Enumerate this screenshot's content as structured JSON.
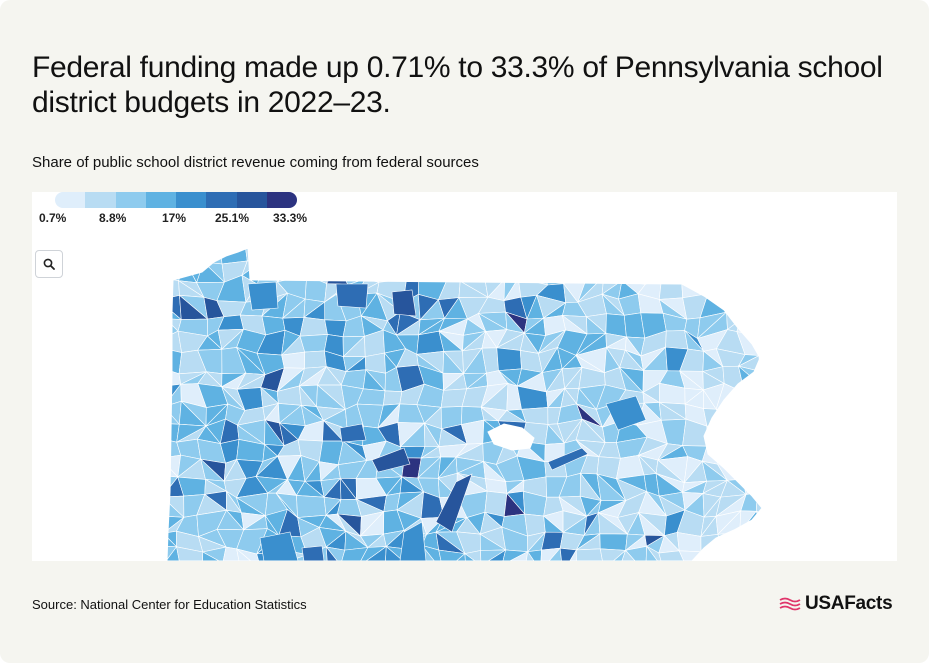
{
  "title": "Federal funding made up 0.71% to 33.3% of Pennsylvania school district budgets in 2022–23.",
  "subtitle": "Share of public school district revenue coming from federal sources",
  "legend": {
    "labels": [
      "0.7%",
      "8.8%",
      "17%",
      "25.1%",
      "33.3%"
    ],
    "colors": [
      "#dfeefb",
      "#b8dcf3",
      "#8ecbee",
      "#5fb2e2",
      "#3a8fce",
      "#2e6db4",
      "#27559c",
      "#2c3380"
    ]
  },
  "map": {
    "region": "Pennsylvania school districts",
    "value_range": [
      0.71,
      33.3
    ],
    "zoom_icon": "search-icon"
  },
  "source": "Source: National Center for Education Statistics",
  "brand": {
    "name": "USAFacts",
    "flag_color": "#e0356b"
  }
}
